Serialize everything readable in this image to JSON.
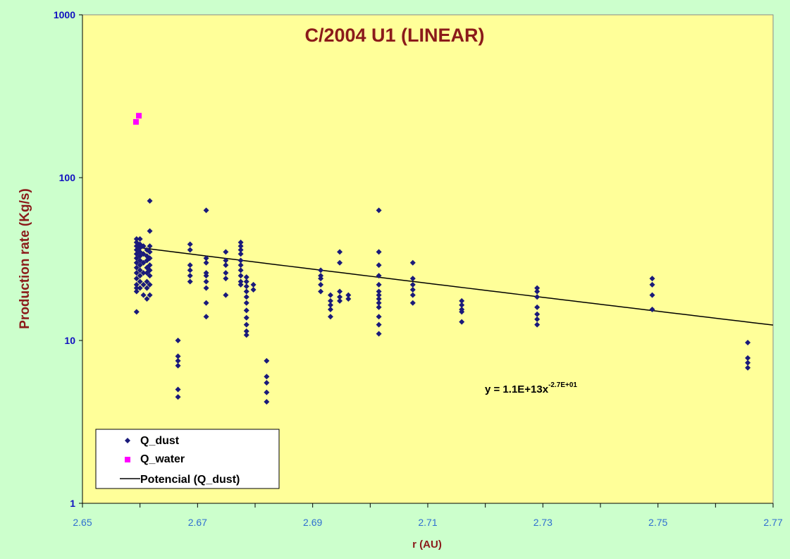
{
  "chart_data": {
    "type": "scatter",
    "title": "C/2004 U1 (LINEAR)",
    "xlabel": "r (AU)",
    "ylabel": "Production rate (Kg/s)",
    "xlim": [
      2.65,
      2.77
    ],
    "ylim": [
      1,
      1000
    ],
    "yscale": "log",
    "x_ticks": [
      "2.65",
      "2.67",
      "2.69",
      "2.71",
      "2.73",
      "2.75",
      "2.77"
    ],
    "x_tick_values": [
      2.65,
      2.67,
      2.69,
      2.71,
      2.73,
      2.75,
      2.77
    ],
    "y_ticks": [
      "1",
      "10",
      "100",
      "1000"
    ],
    "y_tick_values": [
      1,
      10,
      100,
      1000
    ],
    "grid": false,
    "legend_position": "bottom-left",
    "background_color": "#ffff99",
    "outer_background_color": "#ccffcc",
    "series": [
      {
        "name": "Q_dust",
        "marker": "diamond",
        "color": "#1a1a7a",
        "points": [
          [
            2.6594,
            15
          ],
          [
            2.6594,
            20
          ],
          [
            2.6594,
            21
          ],
          [
            2.6594,
            22
          ],
          [
            2.6594,
            24
          ],
          [
            2.6594,
            26
          ],
          [
            2.6594,
            28
          ],
          [
            2.6594,
            30
          ],
          [
            2.6594,
            32
          ],
          [
            2.6594,
            34
          ],
          [
            2.6594,
            36
          ],
          [
            2.6594,
            38
          ],
          [
            2.6594,
            40
          ],
          [
            2.6594,
            42
          ],
          [
            2.66,
            21
          ],
          [
            2.66,
            23
          ],
          [
            2.66,
            25
          ],
          [
            2.66,
            27
          ],
          [
            2.66,
            29
          ],
          [
            2.66,
            31
          ],
          [
            2.66,
            33
          ],
          [
            2.66,
            35
          ],
          [
            2.66,
            37
          ],
          [
            2.66,
            39
          ],
          [
            2.66,
            42
          ],
          [
            2.6606,
            19
          ],
          [
            2.6606,
            22
          ],
          [
            2.6606,
            26
          ],
          [
            2.6606,
            30
          ],
          [
            2.6606,
            34
          ],
          [
            2.6606,
            38
          ],
          [
            2.6612,
            18
          ],
          [
            2.6612,
            21
          ],
          [
            2.6612,
            23
          ],
          [
            2.6612,
            26
          ],
          [
            2.6612,
            28
          ],
          [
            2.6612,
            31
          ],
          [
            2.6612,
            33
          ],
          [
            2.6612,
            36
          ],
          [
            2.6617,
            19
          ],
          [
            2.6617,
            22
          ],
          [
            2.6617,
            25
          ],
          [
            2.6617,
            27
          ],
          [
            2.6617,
            29
          ],
          [
            2.6617,
            32
          ],
          [
            2.6617,
            35
          ],
          [
            2.6617,
            38
          ],
          [
            2.6617,
            47
          ],
          [
            2.6617,
            72
          ],
          [
            2.6666,
            4.5
          ],
          [
            2.6666,
            5
          ],
          [
            2.6666,
            7
          ],
          [
            2.6666,
            7.5
          ],
          [
            2.6666,
            8
          ],
          [
            2.6666,
            10
          ],
          [
            2.6687,
            23
          ],
          [
            2.6687,
            25
          ],
          [
            2.6687,
            27
          ],
          [
            2.6687,
            29
          ],
          [
            2.6687,
            36
          ],
          [
            2.6687,
            39
          ],
          [
            2.6715,
            14
          ],
          [
            2.6715,
            17
          ],
          [
            2.6715,
            21
          ],
          [
            2.6715,
            23
          ],
          [
            2.6715,
            25
          ],
          [
            2.6715,
            26
          ],
          [
            2.6715,
            30
          ],
          [
            2.6715,
            32
          ],
          [
            2.6715,
            63
          ],
          [
            2.6749,
            19
          ],
          [
            2.6749,
            24
          ],
          [
            2.6749,
            26
          ],
          [
            2.6749,
            29
          ],
          [
            2.6749,
            31
          ],
          [
            2.6749,
            35
          ],
          [
            2.6775,
            22
          ],
          [
            2.6775,
            23
          ],
          [
            2.6775,
            25
          ],
          [
            2.6775,
            27
          ],
          [
            2.6775,
            29
          ],
          [
            2.6775,
            31
          ],
          [
            2.6775,
            34
          ],
          [
            2.6775,
            36
          ],
          [
            2.6775,
            38
          ],
          [
            2.6775,
            40
          ],
          [
            2.6785,
            10.8
          ],
          [
            2.6785,
            11.4
          ],
          [
            2.6785,
            12.5
          ],
          [
            2.6785,
            13.8
          ],
          [
            2.6785,
            15.3
          ],
          [
            2.6785,
            17
          ],
          [
            2.6785,
            18.5
          ],
          [
            2.6785,
            20
          ],
          [
            2.6785,
            21.5
          ],
          [
            2.6785,
            23
          ],
          [
            2.6785,
            24.5
          ],
          [
            2.6797,
            20.5
          ],
          [
            2.6797,
            22
          ],
          [
            2.682,
            4.2
          ],
          [
            2.682,
            4.8
          ],
          [
            2.682,
            5.5
          ],
          [
            2.682,
            6
          ],
          [
            2.682,
            7.5
          ],
          [
            2.6914,
            20
          ],
          [
            2.6914,
            22
          ],
          [
            2.6914,
            24
          ],
          [
            2.6914,
            25
          ],
          [
            2.6914,
            27
          ],
          [
            2.6931,
            14
          ],
          [
            2.6931,
            15.5
          ],
          [
            2.6931,
            16.5
          ],
          [
            2.6931,
            17.5
          ],
          [
            2.6931,
            19
          ],
          [
            2.6947,
            17.5
          ],
          [
            2.6947,
            18.5
          ],
          [
            2.6947,
            20
          ],
          [
            2.6947,
            30
          ],
          [
            2.6947,
            35
          ],
          [
            2.6962,
            18
          ],
          [
            2.6962,
            19
          ],
          [
            2.7015,
            11
          ],
          [
            2.7015,
            12.5
          ],
          [
            2.7015,
            14
          ],
          [
            2.7015,
            16
          ],
          [
            2.7015,
            17
          ],
          [
            2.7015,
            18
          ],
          [
            2.7015,
            19
          ],
          [
            2.7015,
            20
          ],
          [
            2.7015,
            22
          ],
          [
            2.7015,
            25
          ],
          [
            2.7015,
            29
          ],
          [
            2.7015,
            35
          ],
          [
            2.7015,
            63
          ],
          [
            2.7074,
            17
          ],
          [
            2.7074,
            19
          ],
          [
            2.7074,
            20.5
          ],
          [
            2.7074,
            22
          ],
          [
            2.7074,
            24
          ],
          [
            2.7074,
            30
          ],
          [
            2.7159,
            13
          ],
          [
            2.7159,
            15
          ],
          [
            2.7159,
            15.5
          ],
          [
            2.7159,
            16.5
          ],
          [
            2.7159,
            17.5
          ],
          [
            2.729,
            12.5
          ],
          [
            2.729,
            13.5
          ],
          [
            2.729,
            14.5
          ],
          [
            2.729,
            16
          ],
          [
            2.729,
            18.5
          ],
          [
            2.729,
            20
          ],
          [
            2.729,
            21
          ],
          [
            2.749,
            15.5
          ],
          [
            2.749,
            19
          ],
          [
            2.749,
            22
          ],
          [
            2.749,
            24
          ],
          [
            2.7656,
            6.8
          ],
          [
            2.7656,
            7.3
          ],
          [
            2.7656,
            7.8
          ],
          [
            2.7656,
            9.7
          ]
        ]
      },
      {
        "name": "Q_water",
        "marker": "square",
        "color": "#ff00ff",
        "points": [
          [
            2.6593,
            220
          ],
          [
            2.6598,
            240
          ]
        ]
      },
      {
        "name": "Potencial (Q_dust)",
        "type": "line",
        "color": "#000000",
        "fit": {
          "a": 11000000000000.0,
          "b": -27
        },
        "x_range": [
          2.66,
          2.77
        ]
      }
    ],
    "annotations": [
      {
        "text": "y = 1.1E+13x",
        "superscript": "-2.7E+01",
        "at": [
          2.7215,
          5.6
        ]
      }
    ]
  }
}
